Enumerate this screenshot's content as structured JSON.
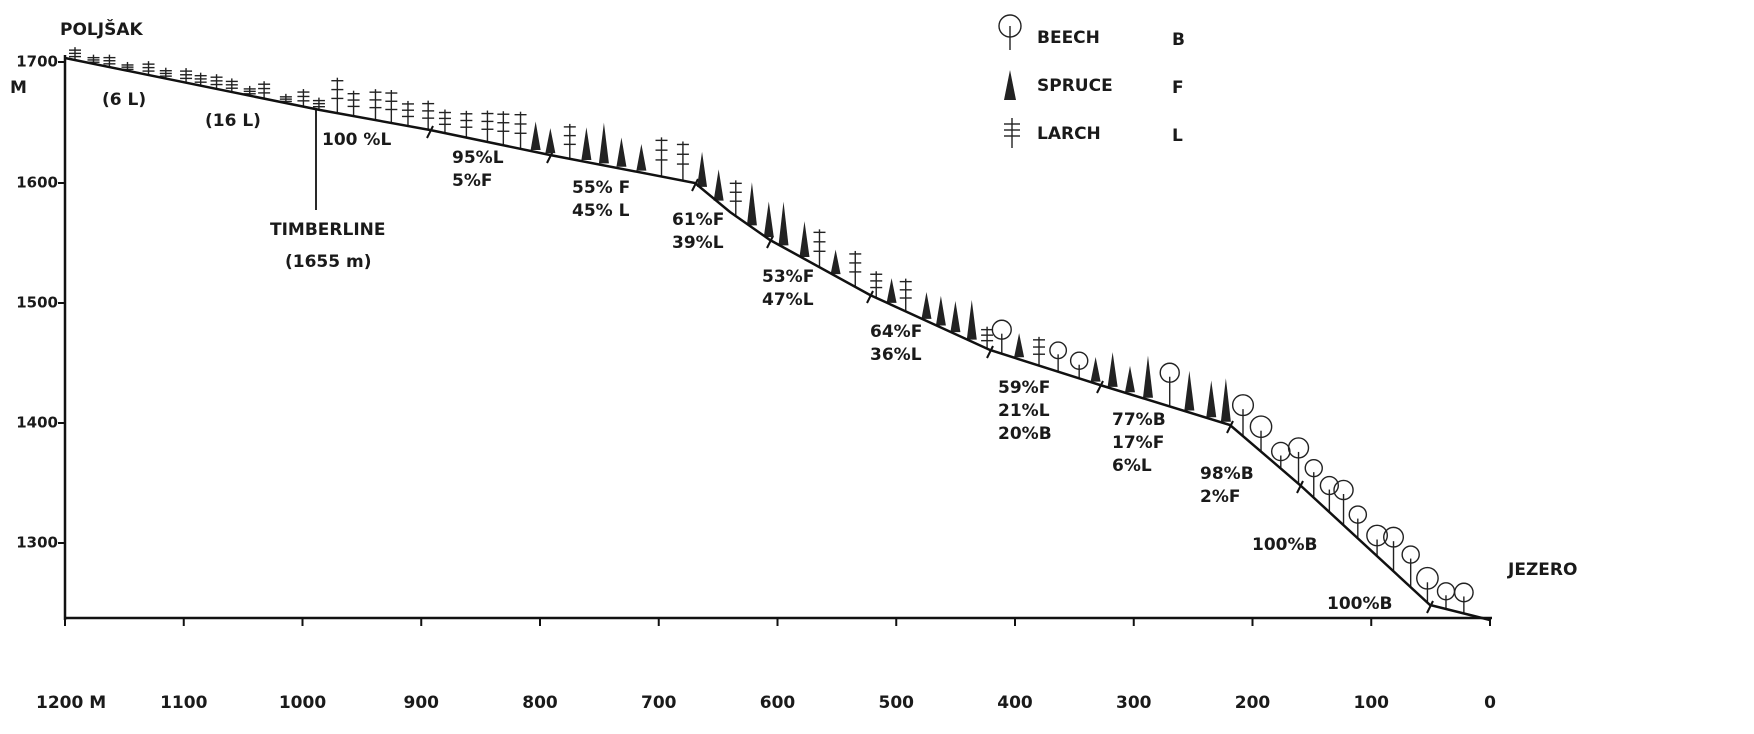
{
  "header": {
    "start": "POLJŠAK",
    "end": "JEZERO"
  },
  "y_axis": {
    "unit": "M",
    "ticks": [
      "1700",
      "1600",
      "1500",
      "1400",
      "1300"
    ]
  },
  "x_axis": {
    "ticks": [
      "1200 M",
      "1100",
      "1000",
      "900",
      "800",
      "700",
      "600",
      "500",
      "400",
      "300",
      "200",
      "100",
      "0"
    ]
  },
  "legend": [
    {
      "name": "BEECH",
      "code": "B"
    },
    {
      "name": "SPRUCE",
      "code": "F"
    },
    {
      "name": "LARCH",
      "code": "L"
    }
  ],
  "timberline": {
    "label": "TIMBERLINE",
    "elevation": "(1655 m)"
  },
  "annotations": [
    [
      "(6 L)"
    ],
    [
      "(16 L)"
    ],
    [
      "100 %L"
    ],
    [
      "95%L",
      "5%F"
    ],
    [
      "55% F",
      "45% L"
    ],
    [
      "61%F",
      "39%L"
    ],
    [
      "53%F",
      "47%L"
    ],
    [
      "64%F",
      "36%L"
    ],
    [
      "59%F",
      "21%L",
      "20%B"
    ],
    [
      "77%B",
      "17%F",
      "6%L"
    ],
    [
      "98%B",
      "2%F"
    ],
    [
      "100%B"
    ],
    [
      "100%B"
    ]
  ]
}
